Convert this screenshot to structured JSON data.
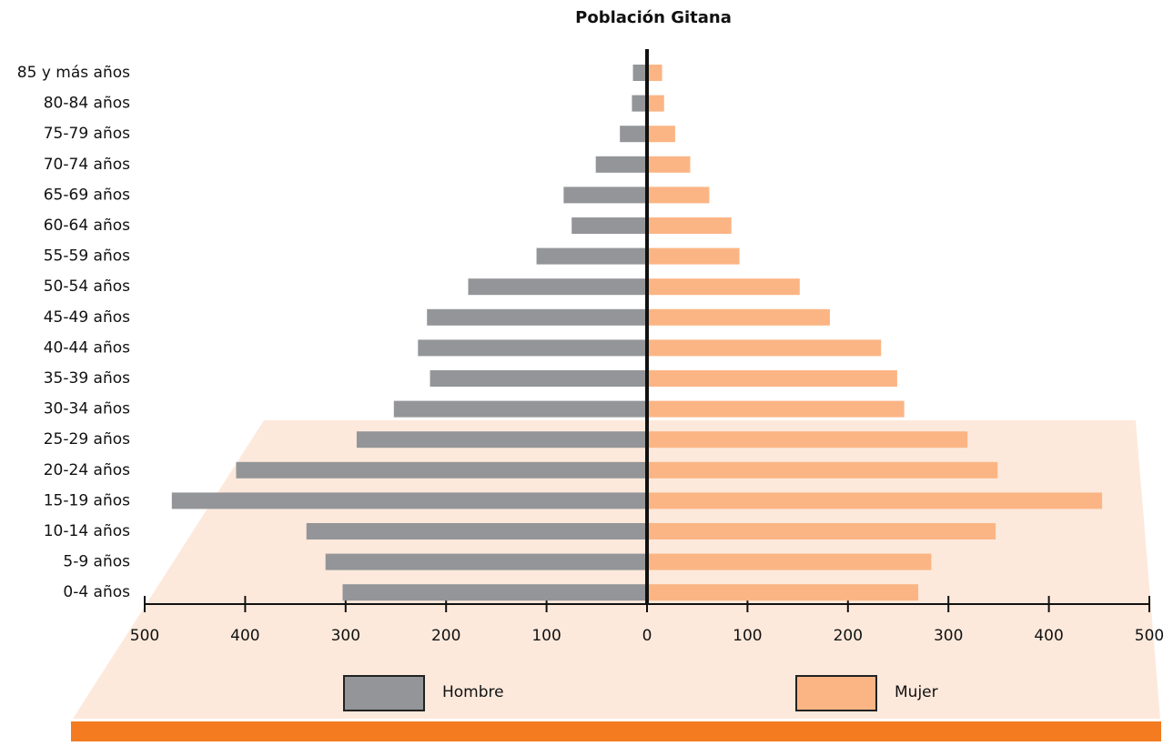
{
  "chart_data": {
    "type": "population_pyramid",
    "title": "Población Gitana",
    "categories": [
      "85 y más años",
      "80-84 años",
      "75-79 años",
      "70-74 años",
      "65-69 años",
      "60-64 años",
      "55-59 años",
      "50-54 años",
      "45-49 años",
      "40-44 años",
      "35-39 años",
      "30-34 años",
      "25-29 años",
      "20-24 años",
      "15-19 años",
      "10-14 años",
      "5-9 años",
      "0-4 años"
    ],
    "series": [
      {
        "name": "Hombre",
        "color": "#939598",
        "side": "left",
        "values": [
          14,
          15,
          27,
          51,
          83,
          75,
          110,
          178,
          219,
          228,
          216,
          252,
          289,
          409,
          473,
          339,
          320,
          303
        ]
      },
      {
        "name": "Mujer",
        "color": "#fbb584",
        "side": "right",
        "values": [
          15,
          17,
          28,
          43,
          62,
          84,
          92,
          152,
          182,
          233,
          249,
          256,
          319,
          349,
          453,
          347,
          283,
          270
        ]
      }
    ],
    "xlim": [
      -500,
      500
    ],
    "xticks": [
      {
        "value": -500,
        "label": "500"
      },
      {
        "value": -400,
        "label": "400"
      },
      {
        "value": -300,
        "label": "300"
      },
      {
        "value": -200,
        "label": "200"
      },
      {
        "value": -100,
        "label": "100"
      },
      0,
      100,
      200,
      300,
      400,
      500
    ]
  }
}
